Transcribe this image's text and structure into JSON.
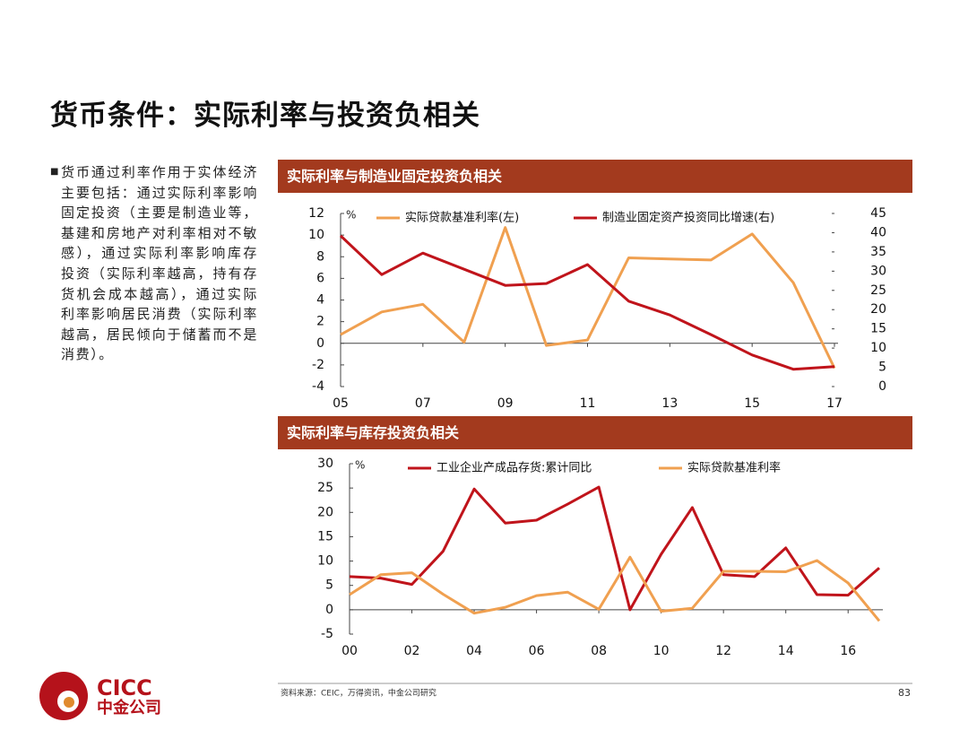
{
  "title": "货币条件：实际利率与投资负相关",
  "bullet": "货币通过利率作用于实体经济主要包括：通过实际利率影响固定投资（主要是制造业等，基建和房地产对利率相对不敏感），通过实际利率影响库存投资（实际利率越高，持有存货机会成本越高），通过实际利率影响居民消费（实际利率越高，居民倾向于储蓄而不是消费）。",
  "chart_data": [
    {
      "type": "line",
      "title": "实际利率与制造业固定投资负相关",
      "y_unit": "%",
      "x": [
        2005,
        2006,
        2007,
        2008,
        2009,
        2010,
        2011,
        2012,
        2013,
        2014,
        2015,
        2016,
        2017
      ],
      "xlim": [
        2005,
        2017
      ],
      "xticks": [
        {
          "value": 2005,
          "label": "05"
        },
        {
          "value": 2007,
          "label": "07"
        },
        {
          "value": 2009,
          "label": "09"
        },
        {
          "value": 2011,
          "label": "11"
        },
        {
          "value": 2013,
          "label": "13"
        },
        {
          "value": 2015,
          "label": "15"
        },
        {
          "value": 2017,
          "label": "17"
        }
      ],
      "ylim": [
        -4,
        12
      ],
      "yticks": [
        -4,
        -2,
        0,
        2,
        4,
        6,
        8,
        10,
        12
      ],
      "y2lim": [
        0,
        45
      ],
      "y2ticks": [
        0,
        5,
        10,
        15,
        20,
        25,
        30,
        35,
        40,
        45
      ],
      "series": [
        {
          "name": "实际贷款基准利率(左)",
          "color": "#F0A050",
          "values": [
            0.8,
            2.9,
            3.6,
            0.1,
            10.7,
            -0.2,
            0.3,
            7.9,
            7.8,
            7.7,
            10.1,
            5.6,
            -2.3
          ]
        },
        {
          "name": "制造业固定资产投资同比增速(右)",
          "color": "#C0141B",
          "axis": "y2",
          "values": [
            39.2,
            29.1,
            34.7,
            30.5,
            26.3,
            26.8,
            31.7,
            22.2,
            18.6,
            13.5,
            8.2,
            4.5,
            5.2
          ]
        }
      ]
    },
    {
      "type": "line",
      "title": "实际利率与库存投资负相关",
      "y_unit": "%",
      "x": [
        2000,
        2001,
        2002,
        2003,
        2004,
        2005,
        2006,
        2007,
        2008,
        2009,
        2010,
        2011,
        2012,
        2013,
        2014,
        2015,
        2016,
        2017
      ],
      "xlim": [
        2000,
        2017
      ],
      "xticks": [
        {
          "value": 2000,
          "label": "00"
        },
        {
          "value": 2002,
          "label": "02"
        },
        {
          "value": 2004,
          "label": "04"
        },
        {
          "value": 2006,
          "label": "06"
        },
        {
          "value": 2008,
          "label": "08"
        },
        {
          "value": 2010,
          "label": "10"
        },
        {
          "value": 2012,
          "label": "12"
        },
        {
          "value": 2014,
          "label": "14"
        },
        {
          "value": 2016,
          "label": "16"
        }
      ],
      "ylim": [
        -5,
        30
      ],
      "yticks": [
        -5,
        0,
        5,
        10,
        15,
        20,
        25,
        30
      ],
      "series": [
        {
          "name": "工业企业产成品存货:累计同比",
          "color": "#C0141B",
          "values": [
            6.8,
            6.5,
            5.2,
            12.0,
            24.8,
            17.8,
            18.4,
            21.7,
            25.2,
            0,
            11.4,
            21.0,
            7.2,
            6.8,
            12.7,
            3.1,
            3.0,
            8.6
          ]
        },
        {
          "name": "实际贷款基准利率",
          "color": "#F0A050",
          "values": [
            3.1,
            7.2,
            7.6,
            3.2,
            -0.7,
            0.5,
            2.9,
            3.6,
            0.1,
            10.8,
            -0.3,
            0.3,
            7.9,
            7.9,
            7.8,
            10.1,
            5.5,
            -2.3
          ]
        }
      ]
    }
  ],
  "source": "资料来源：CEIC，万得资讯，中金公司研究",
  "page_number": 83,
  "logo": {
    "name": "CICC",
    "name_cn": "中金公司"
  }
}
